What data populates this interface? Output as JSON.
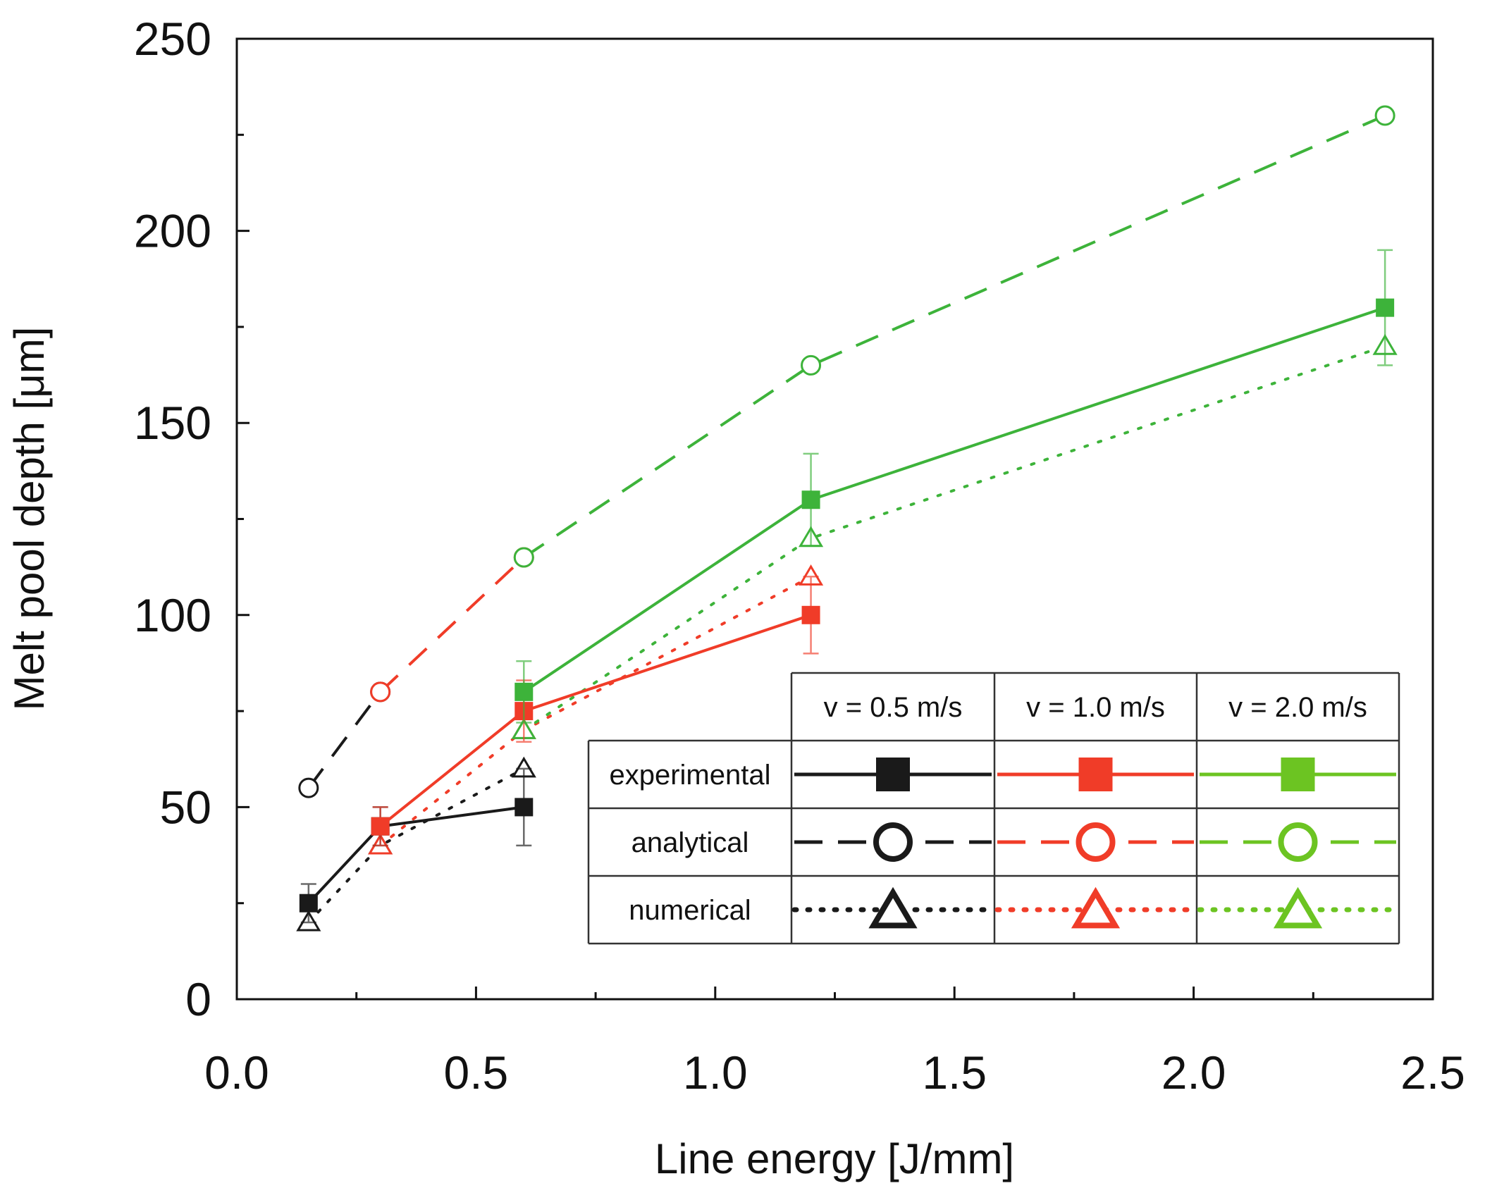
{
  "chart_data": {
    "type": "line",
    "title": "",
    "xlabel": "Line energy [J/mm]",
    "ylabel": "Melt pool depth [μm]",
    "xlim": [
      0.0,
      2.5
    ],
    "ylim": [
      0,
      250
    ],
    "x_ticks": [
      "0.0",
      "0.5",
      "1.0",
      "1.5",
      "2.0",
      "2.5"
    ],
    "x_tick_values": [
      0.0,
      0.5,
      1.0,
      1.5,
      2.0,
      2.5
    ],
    "y_ticks": [
      "0",
      "50",
      "100",
      "150",
      "200",
      "250"
    ],
    "y_tick_values": [
      0,
      50,
      100,
      150,
      200,
      250
    ],
    "grid": false,
    "legend": {
      "placement": "bottom-right",
      "columns": [
        "v = 0.5 m/s",
        "v = 1.0 m/s",
        "v = 2.0 m/s"
      ],
      "rows": [
        "experimental",
        "analytical",
        "numerical"
      ]
    },
    "colors": {
      "v05": "#1a1a1a",
      "v10": "#f03c28",
      "v20": "#3db33a"
    },
    "legend_colors": {
      "v05": "#1a1a1a",
      "v10": "#f03c28",
      "v20": "#6cc422"
    },
    "series": [
      {
        "name": "experimental v = 0.5 m/s",
        "type": "experimental",
        "color_key": "v05",
        "x": [
          0.15,
          0.3,
          0.6
        ],
        "y": [
          25,
          45,
          50
        ],
        "err": [
          5,
          5,
          10
        ]
      },
      {
        "name": "analytical v = 0.5 m/s",
        "type": "analytical",
        "color_key": "v05",
        "x": [
          0.15,
          0.3
        ],
        "y": [
          55,
          80
        ]
      },
      {
        "name": "numerical v = 0.5 m/s",
        "type": "numerical",
        "color_key": "v05",
        "x": [
          0.15,
          0.3,
          0.6
        ],
        "y": [
          20,
          40,
          60
        ]
      },
      {
        "name": "experimental v = 1.0 m/s",
        "type": "experimental",
        "color_key": "v10",
        "x": [
          0.3,
          0.6,
          1.2
        ],
        "y": [
          45,
          75,
          100
        ],
        "err": [
          5,
          8,
          10
        ]
      },
      {
        "name": "analytical v = 1.0 m/s",
        "type": "analytical",
        "color_key": "v10",
        "x": [
          0.3,
          0.6
        ],
        "y": [
          80,
          115
        ]
      },
      {
        "name": "numerical v = 1.0 m/s",
        "type": "numerical",
        "color_key": "v10",
        "x": [
          0.3,
          0.6,
          1.2
        ],
        "y": [
          40,
          70,
          110
        ]
      },
      {
        "name": "experimental v = 2.0 m/s",
        "type": "experimental",
        "color_key": "v20",
        "x": [
          0.6,
          1.2,
          2.4
        ],
        "y": [
          80,
          130,
          180
        ],
        "err": [
          8,
          12,
          15
        ]
      },
      {
        "name": "analytical v = 2.0 m/s",
        "type": "analytical",
        "color_key": "v20",
        "x": [
          0.6,
          1.2,
          2.4
        ],
        "y": [
          115,
          165,
          230
        ]
      },
      {
        "name": "numerical v = 2.0 m/s",
        "type": "numerical",
        "color_key": "v20",
        "x": [
          0.6,
          1.2,
          2.4
        ],
        "y": [
          70,
          120,
          170
        ]
      }
    ]
  }
}
